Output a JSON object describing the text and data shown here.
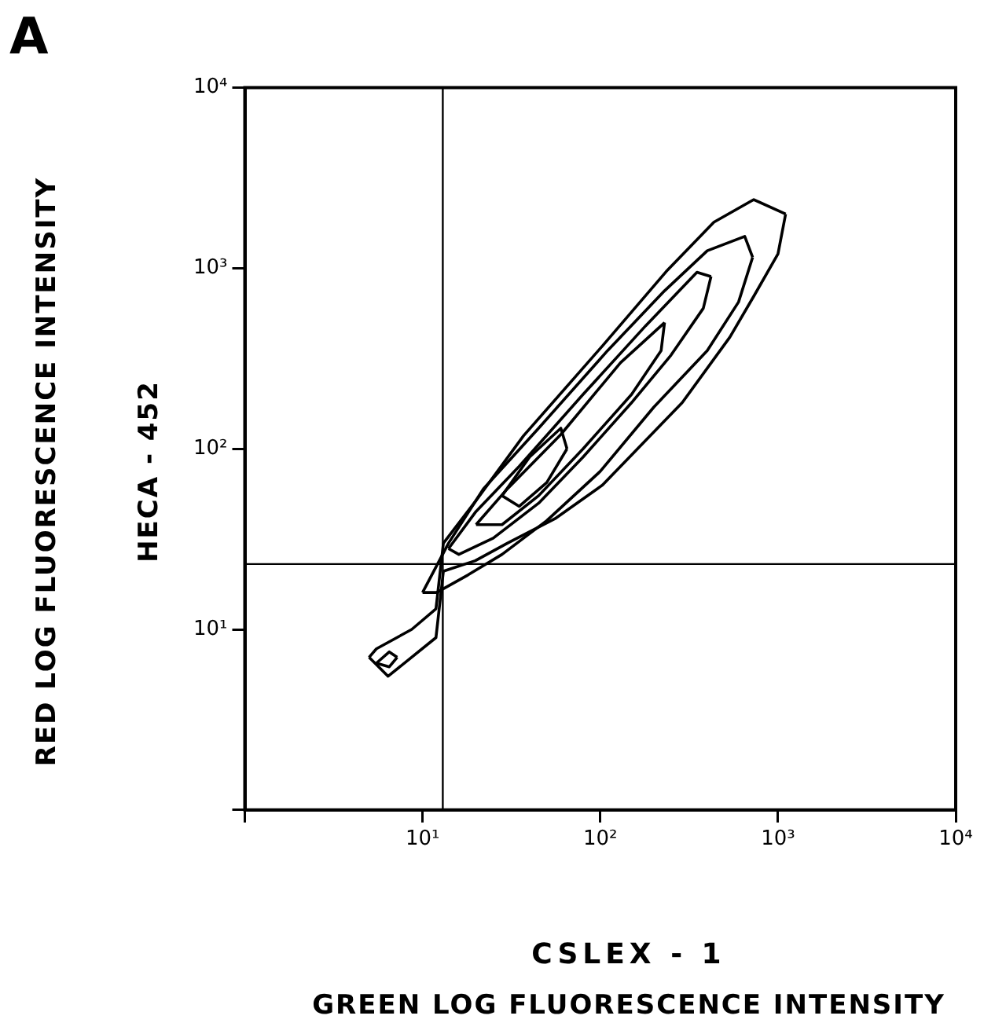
{
  "chart_data": {
    "type": "line",
    "ylabel": "RED LOG FLUORESCENCE INTENSITY",
    "annotations": [
      "A",
      "CSLEX - 1",
      "HECA - 452",
      "GREEN LOG FLUORESCENCE INTENSITY"
    ],
    "log": "xy",
    "grid": false,
    "legend": false,
    "marker": "none",
    "line_style": "solid",
    "xlim": [
      1,
      10000
    ],
    "ylim": [
      1,
      10000
    ],
    "xticks": [
      {
        "value": 1,
        "label": null
      },
      {
        "value": 10,
        "label": "10¹"
      },
      {
        "value": 100,
        "label": "10²"
      },
      {
        "value": 1000,
        "label": "10³"
      },
      {
        "value": 10000,
        "label": "10⁴"
      }
    ],
    "yticks": [
      {
        "value": 1,
        "label": null
      },
      {
        "value": 10,
        "label": "10¹"
      },
      {
        "value": 100,
        "label": "10²"
      },
      {
        "value": 1000,
        "label": "10³"
      },
      {
        "value": 10000,
        "label": "10⁴"
      }
    ],
    "ref_lines": [
      {
        "axis": "x",
        "value": 13,
        "color": "#000000"
      },
      {
        "axis": "y",
        "value": 23,
        "color": "#000000"
      }
    ],
    "series": [
      {
        "color": "#000000",
        "x": [
          5.0,
          5.5,
          8.7,
          11.9,
          13.1,
          19.8,
          37,
          103,
          235,
          436,
          731,
          1104
        ],
        "values": [
          7,
          7.8,
          10,
          13,
          30,
          51,
          118,
          372,
          959,
          1800,
          2400,
          1995
        ]
      },
      {
        "color": "#000000",
        "x": [
          5.0,
          6.4,
          11.9,
          13.1,
          19.8,
          30,
          55.6,
          103,
          289,
          536,
          731,
          1000,
          1104
        ],
        "values": [
          7,
          5.5,
          9,
          21,
          24,
          30,
          41,
          63,
          180,
          415,
          700,
          1200,
          1995
        ]
      },
      {
        "color": "#000000",
        "x": [
          10,
          14,
          22,
          45,
          110,
          230,
          400,
          650,
          720
        ],
        "values": [
          16,
          30,
          60,
          130,
          350,
          750,
          1250,
          1500,
          1150
        ]
      },
      {
        "color": "#000000",
        "x": [
          10,
          12,
          18,
          28,
          50,
          100,
          200,
          400,
          600,
          720
        ],
        "values": [
          16,
          16,
          20,
          26,
          40,
          75,
          170,
          350,
          650,
          1150
        ]
      },
      {
        "color": "#000000",
        "x": [
          14,
          20,
          35,
          80,
          180,
          350,
          420
        ],
        "values": [
          28,
          45,
          80,
          200,
          480,
          950,
          900
        ]
      },
      {
        "color": "#000000",
        "x": [
          14,
          16,
          25,
          45,
          80,
          150,
          250,
          380,
          420
        ],
        "values": [
          28,
          26,
          32,
          50,
          90,
          180,
          330,
          600,
          900
        ]
      },
      {
        "color": "#000000",
        "x": [
          20,
          30,
          60,
          130,
          230
        ],
        "values": [
          38,
          60,
          120,
          300,
          500
        ]
      },
      {
        "color": "#000000",
        "x": [
          20,
          28,
          45,
          80,
          150,
          220,
          230
        ],
        "values": [
          38,
          38,
          55,
          100,
          200,
          350,
          500
        ]
      },
      {
        "color": "#000000",
        "x": [
          28,
          40,
          60,
          65
        ],
        "values": [
          55,
          90,
          130,
          100
        ]
      },
      {
        "color": "#000000",
        "x": [
          28,
          35,
          50,
          65
        ],
        "values": [
          55,
          48,
          65,
          100
        ]
      },
      {
        "color": "#000000",
        "x": [
          5.5,
          6.5,
          7.2
        ],
        "values": [
          6.5,
          7.5,
          7
        ]
      },
      {
        "color": "#000000",
        "x": [
          5.5,
          6.5,
          7.2
        ],
        "values": [
          6.5,
          6.2,
          7
        ]
      }
    ]
  }
}
